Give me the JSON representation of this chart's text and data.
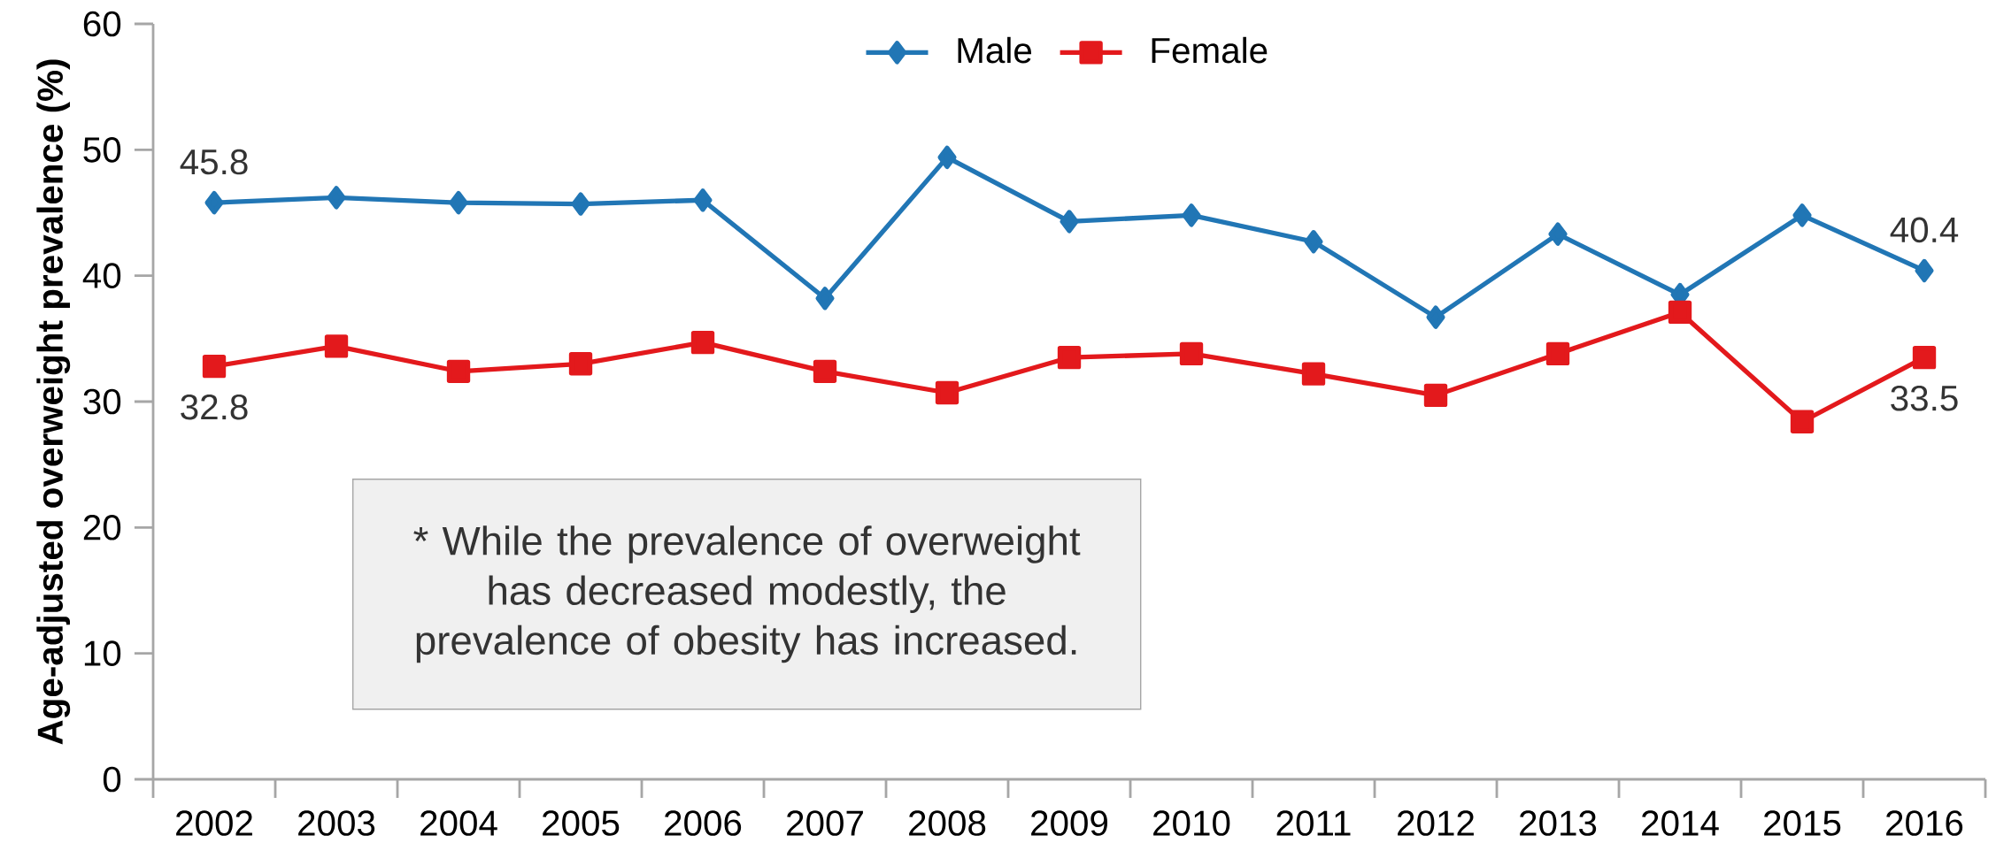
{
  "chart_data": {
    "type": "line",
    "ylabel": "Age-adjusted overweight prevalence (%)",
    "categories": [
      "2002",
      "2003",
      "2004",
      "2005",
      "2006",
      "2007",
      "2008",
      "2009",
      "2010",
      "2011",
      "2012",
      "2013",
      "2014",
      "2015",
      "2016"
    ],
    "series": [
      {
        "name": "Male",
        "color": "#2176b5",
        "marker": "diamond",
        "values": [
          45.8,
          46.2,
          45.8,
          45.7,
          46.0,
          38.2,
          49.4,
          44.3,
          44.8,
          42.7,
          36.7,
          43.3,
          38.5,
          44.8,
          40.4
        ],
        "value_labels": [
          "45.8",
          null,
          null,
          null,
          null,
          null,
          null,
          null,
          null,
          null,
          null,
          null,
          null,
          null,
          "40.4"
        ]
      },
      {
        "name": "Female",
        "color": "#e3191c",
        "marker": "square",
        "values": [
          32.8,
          34.4,
          32.4,
          33.0,
          34.7,
          32.4,
          30.7,
          33.5,
          33.8,
          32.2,
          30.5,
          33.8,
          37.1,
          28.4,
          33.5
        ],
        "value_labels": [
          "32.8",
          null,
          null,
          null,
          null,
          null,
          null,
          null,
          null,
          null,
          null,
          null,
          null,
          null,
          "33.5"
        ]
      }
    ],
    "ylim": [
      0,
      60
    ],
    "yticks": [
      0,
      10,
      20,
      30,
      40,
      50,
      60
    ],
    "legend": "top",
    "grid": false,
    "line_style": "solid",
    "annotations": [
      "* While the prevalence of overweight has decreased modestly, the prevalence of obesity has increased."
    ]
  }
}
